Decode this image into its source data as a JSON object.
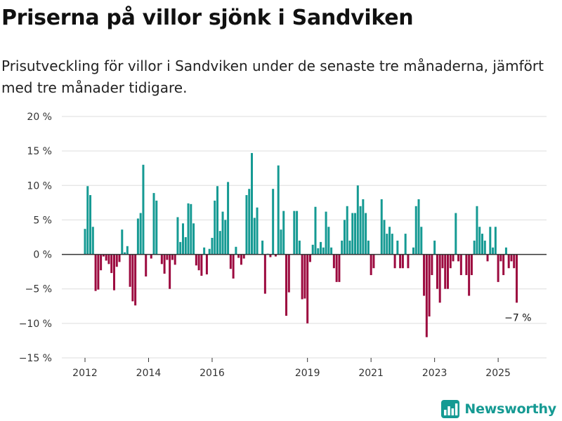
{
  "title": "Priserna på villor sjönk i Sandviken",
  "subtitle": "Prisutveckling för villor i Sandviken under de senaste tre månaderna, jämfört med tre månader tidigare.",
  "brand": {
    "name": "Newsworthy",
    "color": "#159a93"
  },
  "colors": {
    "positive": "#159a93",
    "negative": "#9c0a3f",
    "grid": "#dddddd",
    "zero_line": "#333333"
  },
  "chart_data": {
    "type": "bar",
    "x_start": "2012-01",
    "x_step": "month",
    "ylim": [
      -15,
      20
    ],
    "yticks": [
      20,
      15,
      10,
      5,
      0,
      -5,
      -10,
      -15
    ],
    "ytick_labels": [
      "20 %",
      "15 %",
      "10 %",
      "5 %",
      "0 %",
      "−5 %",
      "−10 %",
      "−15 %"
    ],
    "xticks": [
      "2012",
      "2014",
      "2016",
      "2019",
      "2021",
      "2023",
      "2025"
    ],
    "grid": true,
    "last_value_label": "−7 %",
    "values": [
      3.7,
      9.9,
      8.6,
      4.0,
      -5.3,
      -5.1,
      -2.3,
      -0.3,
      -0.9,
      -1.4,
      -2.7,
      -5.2,
      -1.8,
      -1.1,
      3.6,
      0.3,
      1.2,
      -4.7,
      -6.8,
      -7.4,
      5.2,
      6.0,
      13.0,
      -3.2,
      0.0,
      -0.6,
      8.9,
      7.8,
      0.0,
      -1.4,
      -2.8,
      -0.8,
      -5.0,
      -0.8,
      -1.5,
      5.4,
      1.8,
      4.5,
      2.5,
      7.4,
      7.3,
      4.5,
      -1.6,
      -2.3,
      -3.1,
      1.0,
      -2.9,
      0.8,
      2.4,
      7.8,
      9.9,
      3.4,
      6.2,
      5.0,
      10.5,
      -2.1,
      -3.5,
      1.1,
      -0.5,
      -1.5,
      -0.6,
      8.6,
      9.5,
      14.7,
      5.3,
      6.8,
      0.0,
      2.0,
      -5.7,
      0.1,
      -0.4,
      9.5,
      -0.3,
      12.9,
      3.6,
      6.3,
      -8.9,
      -5.5,
      0.0,
      6.3,
      6.3,
      2.0,
      -6.5,
      -6.4,
      -10.0,
      -1.1,
      1.4,
      6.9,
      0.9,
      1.8,
      1.0,
      6.2,
      4.0,
      1.0,
      -2.0,
      -4.0,
      -4.0,
      2.0,
      5.0,
      7.0,
      2.0,
      6.0,
      6.0,
      10.0,
      7.0,
      8.0,
      6.0,
      2.0,
      -3.0,
      -2.0,
      0.0,
      0.0,
      8.0,
      5.0,
      3.0,
      4.0,
      3.0,
      -2.0,
      2.0,
      -2.0,
      -2.0,
      3.0,
      -2.0,
      0.0,
      1.0,
      7.0,
      8.0,
      4.0,
      -6.0,
      -12.0,
      -9.0,
      -3.0,
      2.0,
      -5.0,
      -7.0,
      -2.0,
      -5.0,
      -5.0,
      -2.0,
      -1.0,
      6.0,
      -1.0,
      -3.0,
      0.0,
      -3.0,
      -6.0,
      -3.0,
      2.0,
      7.0,
      4.0,
      3.0,
      2.0,
      -1.0,
      4.0,
      1.0,
      4.0,
      -4.0,
      -1.0,
      -3.0,
      1.0,
      -2.0,
      -1.0,
      -2.0,
      -7.0
    ]
  }
}
